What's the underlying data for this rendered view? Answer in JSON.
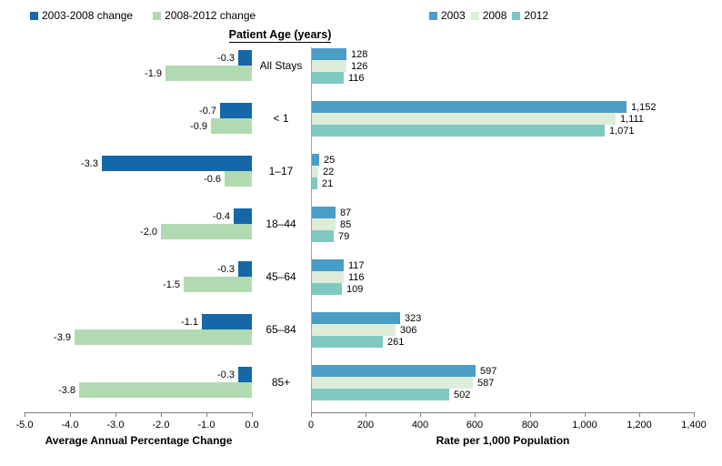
{
  "center_title": "Patient Age (years)",
  "colors": {
    "change_2003_2008": "#1467a8",
    "change_2008_2012": "#b2dab2",
    "rate_2003": "#4a9dc7",
    "rate_2008": "#ddedd9",
    "rate_2012": "#7ec9c1",
    "axis_line": "#7f7f7f",
    "separator_line": "#a3a3a3",
    "text": "#000000"
  },
  "chart_data": [
    {
      "type": "bar",
      "orientation": "horizontal",
      "panel": "left",
      "xlabel": "Average Annual Percentage Change",
      "categories": [
        "All Stays",
        "< 1",
        "1–17",
        "18–44",
        "45–64",
        "65–84",
        "85+"
      ],
      "series": [
        {
          "name": "2003-2008 change",
          "values": [
            -0.3,
            -0.7,
            -3.3,
            -0.4,
            -0.3,
            -1.1,
            -0.3
          ]
        },
        {
          "name": "2008-2012 change",
          "values": [
            -1.9,
            -0.9,
            -0.6,
            -2.0,
            -1.5,
            -3.9,
            -3.8
          ]
        }
      ],
      "xlim": [
        -5.0,
        0.0
      ],
      "x_ticks": [
        "-5.0",
        "-4.0",
        "-3.0",
        "-2.0",
        "-1.0",
        "0.0"
      ],
      "grid": false,
      "legend_position": "top-left",
      "value_labels": "left-of-bar"
    },
    {
      "type": "bar",
      "orientation": "horizontal",
      "panel": "right",
      "xlabel": "Rate per 1,000 Population",
      "categories": [
        "All Stays",
        "< 1",
        "1–17",
        "18–44",
        "45–64",
        "65–84",
        "85+"
      ],
      "series": [
        {
          "name": "2003",
          "values": [
            128,
            1152,
            25,
            87,
            117,
            323,
            597
          ]
        },
        {
          "name": "2008",
          "values": [
            126,
            1111,
            22,
            85,
            116,
            306,
            587
          ]
        },
        {
          "name": "2012",
          "values": [
            116,
            1071,
            21,
            79,
            109,
            261,
            502
          ]
        }
      ],
      "xlim": [
        0,
        1400
      ],
      "x_ticks": [
        "0",
        "200",
        "400",
        "600",
        "800",
        "1,000",
        "1,200",
        "1,400"
      ],
      "grid": false,
      "legend_position": "top-center",
      "value_labels": "right-of-bar"
    }
  ]
}
